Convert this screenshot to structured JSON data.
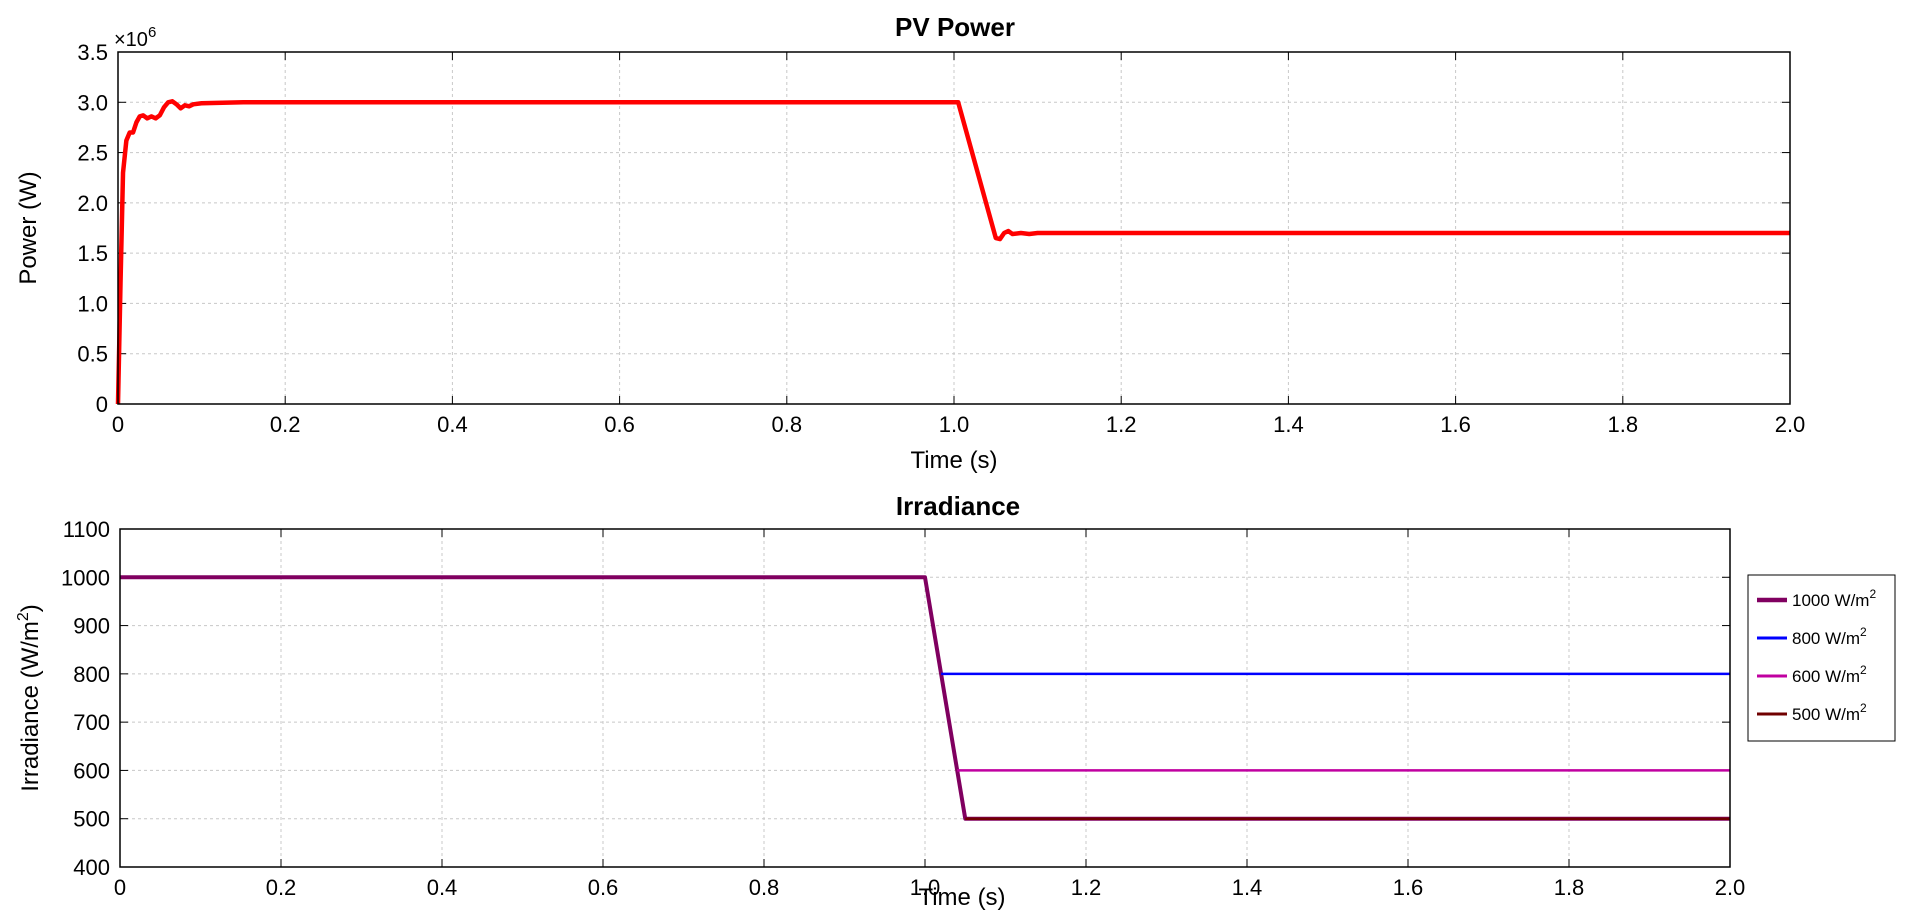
{
  "chart_data": [
    {
      "type": "line",
      "title": "PV Power",
      "xlabel": "Time (s)",
      "ylabel": "Power (W)",
      "y_exponent_label": "×10",
      "y_exponent_power": "6",
      "xlim": [
        0,
        2.0
      ],
      "ylim": [
        0,
        3.5
      ],
      "x_ticks": [
        "0",
        "0.2",
        "0.4",
        "0.6",
        "0.8",
        "1.0",
        "1.2",
        "1.4",
        "1.6",
        "1.8",
        "2.0"
      ],
      "y_ticks": [
        "0",
        "0.5",
        "1.0",
        "1.5",
        "2.0",
        "2.5",
        "3.0",
        "3.5"
      ],
      "grid": true,
      "series": [
        {
          "color": "#ff0000",
          "x": [
            0,
            0.003,
            0.006,
            0.01,
            0.014,
            0.018,
            0.022,
            0.026,
            0.03,
            0.035,
            0.04,
            0.045,
            0.05,
            0.055,
            0.06,
            0.065,
            0.07,
            0.075,
            0.08,
            0.085,
            0.09,
            0.1,
            0.15,
            0.3,
            0.5,
            0.7,
            0.9,
            1.0,
            1.005,
            1.05,
            1.055,
            1.06,
            1.065,
            1.07,
            1.08,
            1.09,
            1.1,
            1.3,
            1.6,
            2.0
          ],
          "y": [
            0,
            1.2,
            2.3,
            2.62,
            2.7,
            2.7,
            2.8,
            2.86,
            2.87,
            2.84,
            2.86,
            2.84,
            2.87,
            2.95,
            3.0,
            3.01,
            2.98,
            2.94,
            2.97,
            2.96,
            2.98,
            2.99,
            3.0,
            3.0,
            3.0,
            3.0,
            3.0,
            3.0,
            3.0,
            1.65,
            1.64,
            1.7,
            1.72,
            1.69,
            1.7,
            1.69,
            1.7,
            1.7,
            1.7,
            1.7
          ]
        }
      ]
    },
    {
      "type": "line",
      "title": "Irradiance",
      "xlabel": "Time (s)",
      "ylabel": "Irradiance (W/m",
      "ylabel_sup": "2",
      "ylabel_close": ")",
      "xlim": [
        0,
        2.0
      ],
      "ylim": [
        400,
        1100
      ],
      "x_ticks": [
        "0",
        "0.2",
        "0.4",
        "0.6",
        "0.8",
        "1.0",
        "1.2",
        "1.4",
        "1.6",
        "1.8",
        "2.0"
      ],
      "y_ticks": [
        "400",
        "500",
        "600",
        "700",
        "800",
        "900",
        "1000",
        "1100"
      ],
      "grid": true,
      "legend_position": "right",
      "series": [
        {
          "name": "1000 W/m",
          "name_sup": "2",
          "color": "#800060",
          "x": [
            0,
            1.0,
            1.05,
            2.0
          ],
          "y": [
            1000,
            1000,
            500,
            500
          ]
        },
        {
          "name": "800 W/m",
          "name_sup": "2",
          "color": "#0000ff",
          "x": [
            1.02,
            2.0
          ],
          "y": [
            800,
            800
          ]
        },
        {
          "name": "600 W/m",
          "name_sup": "2",
          "color": "#c000a0",
          "x": [
            1.04,
            2.0
          ],
          "y": [
            600,
            600
          ]
        },
        {
          "name": "500 W/m",
          "name_sup": "2",
          "color": "#700000",
          "x": [
            1.05,
            2.0
          ],
          "y": [
            500,
            500
          ]
        }
      ]
    }
  ]
}
